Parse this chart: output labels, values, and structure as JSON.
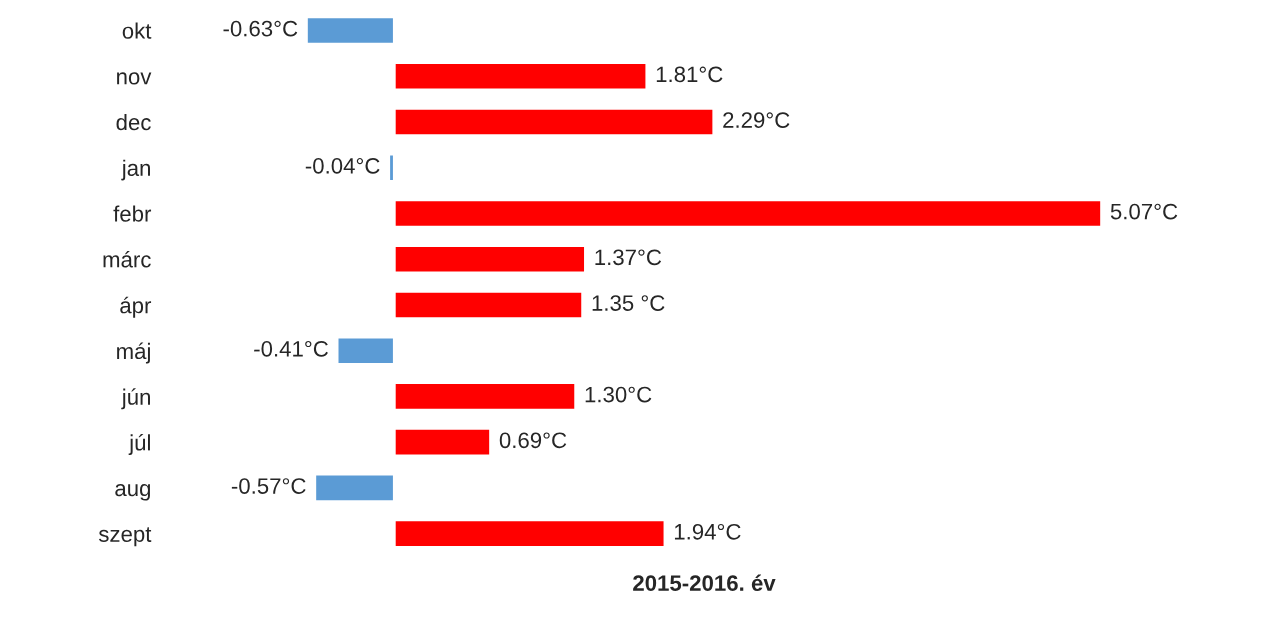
{
  "chart_data": {
    "type": "bar",
    "orientation": "horizontal",
    "xlabel": "2015-2016. év",
    "categories": [
      "okt",
      "nov",
      "dec",
      "jan",
      "febr",
      "márc",
      "ápr",
      "máj",
      "jún",
      "júl",
      "aug",
      "szept"
    ],
    "values": [
      -0.63,
      1.81,
      2.29,
      -0.04,
      5.07,
      1.37,
      1.35,
      -0.41,
      1.3,
      0.69,
      -0.57,
      1.94
    ],
    "colors": [
      "#5b9bd5",
      "#ff0000",
      "#ff0000",
      "#5b9bd5",
      "#ff0000",
      "#ff0000",
      "#ff0000",
      "#5b9bd5",
      "#ff0000",
      "#ff0000",
      "#5b9bd5",
      "#ff0000"
    ],
    "value_labels": [
      "-0.63°C",
      "1.81°C",
      "2.29°C",
      "-0.04°C",
      "5.07°C",
      "1.37°C",
      "1.35 °C",
      "-0.41°C",
      "1.30°C",
      "0.69°C",
      "-0.57°C",
      "1.94°C"
    ],
    "tick_labels": "y",
    "grid": false,
    "legend": false
  }
}
